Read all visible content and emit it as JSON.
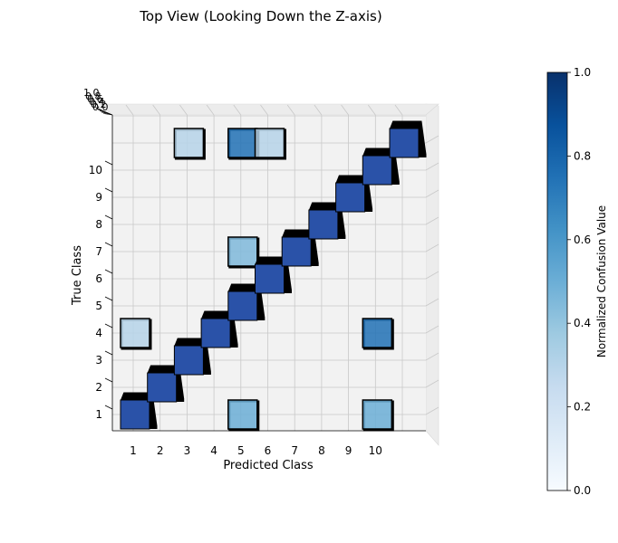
{
  "chart_data": {
    "type": "3d-bar",
    "title": "Top View (Looking Down the Z-axis)",
    "xlabel": "Predicted Class",
    "ylabel": "True Class",
    "x_ticks": [
      "1",
      "2",
      "3",
      "4",
      "5",
      "6",
      "7",
      "8",
      "9",
      "10"
    ],
    "y_ticks": [
      "1",
      "2",
      "3",
      "4",
      "5",
      "6",
      "7",
      "8",
      "9",
      "10"
    ],
    "z_ticks_visible": [
      "1.0",
      "0.8",
      "0.6",
      "0.4",
      "0.2",
      "0.0"
    ],
    "colorbar": {
      "label": "Normalized Confusion Value",
      "ticks": [
        "0.0",
        "0.2",
        "0.4",
        "0.6",
        "0.8",
        "1.0"
      ],
      "range": [
        0,
        1
      ],
      "colormap": "Blues"
    },
    "cells": [
      {
        "x": 1,
        "y": 1,
        "value": 0.85
      },
      {
        "x": 2,
        "y": 2,
        "value": 0.85
      },
      {
        "x": 3,
        "y": 3,
        "value": 0.85
      },
      {
        "x": 4,
        "y": 4,
        "value": 0.85
      },
      {
        "x": 5,
        "y": 5,
        "value": 0.85
      },
      {
        "x": 6,
        "y": 6,
        "value": 0.85
      },
      {
        "x": 7,
        "y": 7,
        "value": 0.85
      },
      {
        "x": 8,
        "y": 8,
        "value": 0.85
      },
      {
        "x": 9,
        "y": 9,
        "value": 0.85
      },
      {
        "x": 10,
        "y": 10,
        "value": 0.85
      },
      {
        "x": 11,
        "y": 11,
        "value": 0.85
      },
      {
        "x": 1,
        "y": 4,
        "value": 0.3
      },
      {
        "x": 5,
        "y": 1,
        "value": 0.5
      },
      {
        "x": 10,
        "y": 1,
        "value": 0.5
      },
      {
        "x": 10,
        "y": 4,
        "value": 0.75
      },
      {
        "x": 5,
        "y": 7,
        "value": 0.45
      },
      {
        "x": 3,
        "y": 11,
        "value": 0.3
      },
      {
        "x": 5,
        "y": 11,
        "value": 0.75
      },
      {
        "x": 6,
        "y": 11,
        "value": 0.3
      }
    ],
    "grid": true,
    "legend": "none"
  }
}
